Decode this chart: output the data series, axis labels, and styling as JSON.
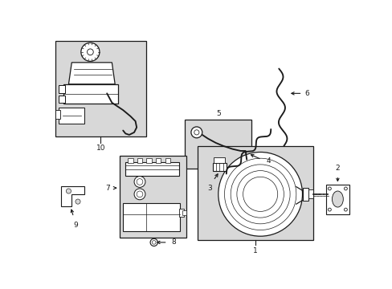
{
  "background_color": "#ffffff",
  "line_color": "#1a1a1a",
  "shaded_color": "#d8d8d8",
  "lw": 0.9
}
